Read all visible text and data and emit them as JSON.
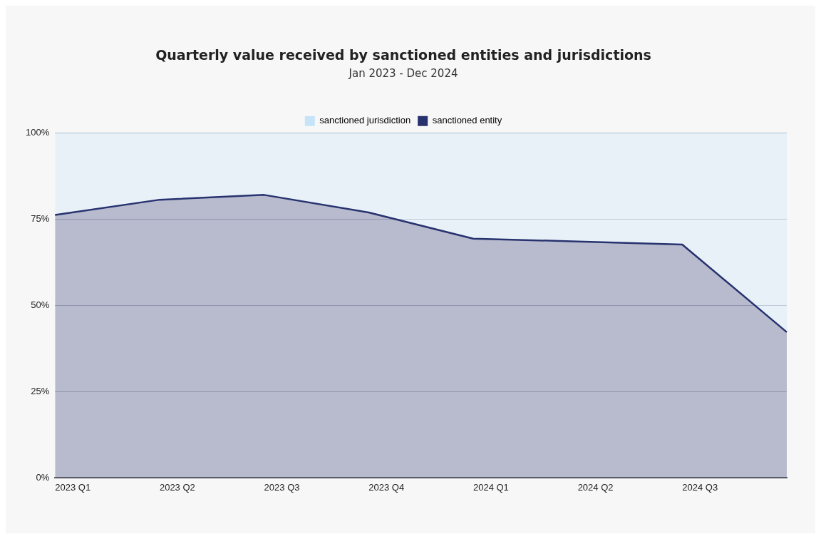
{
  "chart_data": {
    "type": "area",
    "title": "Quarterly value received by sanctioned entities and jurisdictions",
    "subtitle": "Jan 2023 - Dec 2024",
    "categories": [
      "2023 Q1",
      "2023 Q2",
      "2023 Q3",
      "2023 Q4",
      "2024 Q1",
      "2024 Q2",
      "2024 Q3",
      null
    ],
    "series": [
      {
        "name": "sanctioned entity",
        "color": "#27326f",
        "values": [
          76.3,
          80.7,
          82.1,
          77.0,
          69.4,
          68.6,
          67.7,
          42.3
        ]
      },
      {
        "name": "sanctioned jurisdiction",
        "color": "#c6e4f7",
        "values": [
          23.7,
          19.3,
          17.9,
          23.0,
          30.6,
          31.4,
          32.3,
          57.7
        ]
      }
    ],
    "stacked": true,
    "ylim": [
      0,
      100
    ],
    "yticks": [
      {
        "value": 0,
        "label": "0%"
      },
      {
        "value": 25,
        "label": "25%"
      },
      {
        "value": 50,
        "label": "50%"
      },
      {
        "value": 75,
        "label": "75%"
      },
      {
        "value": 100,
        "label": "100%"
      }
    ],
    "grid": "y",
    "legend": "top"
  }
}
